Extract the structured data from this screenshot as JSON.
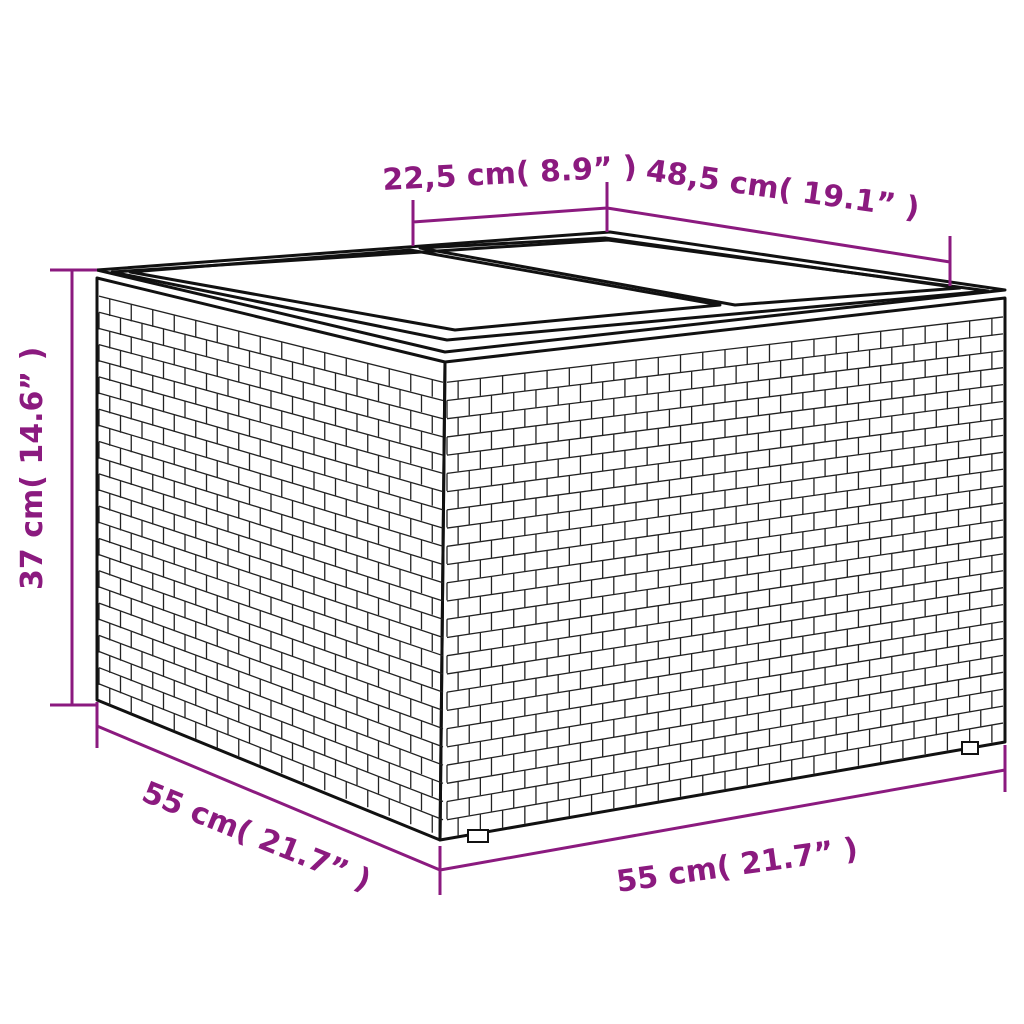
{
  "dimensions": {
    "top_panel_width": "22,5 cm( 8.9” )",
    "top_depth": "48,5 cm( 19.1” )",
    "height": "37 cm( 14.6” )",
    "left_side": "55 cm( 21.7” )",
    "front_side": "55 cm( 21.7” )"
  },
  "colors": {
    "dimension": "#8b1a7f",
    "outline": "#111111"
  },
  "product": "wicker-storage-side-table"
}
